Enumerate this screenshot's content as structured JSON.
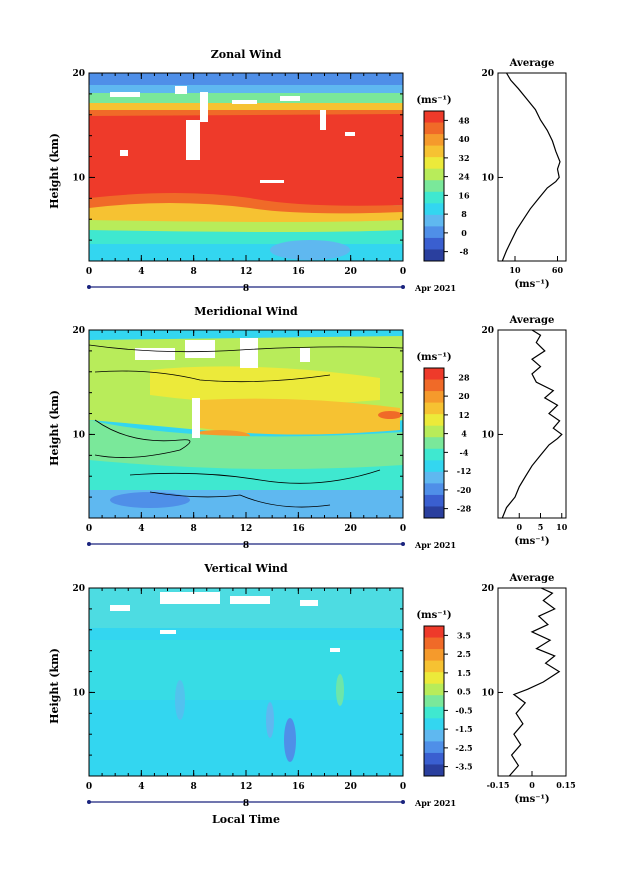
{
  "colors": {
    "scale": [
      "#2a3f9e",
      "#3a5fd0",
      "#4f8fe8",
      "#5fb8f0",
      "#33d6f0",
      "#3fe8d0",
      "#7ae89a",
      "#b8ec5a",
      "#ecea3a",
      "#f6c232",
      "#f59a2c",
      "#f06a28",
      "#ee3a2a"
    ],
    "background": "#ffffff"
  },
  "chart_data": [
    {
      "type": "heatmap",
      "title": "Zonal Wind",
      "xlabel": "",
      "ylabel": "Height (km)",
      "xlim": [
        0,
        24
      ],
      "ylim": [
        2,
        20
      ],
      "x_ticks": [
        "0",
        "4",
        "8",
        "12",
        "16",
        "20",
        "0"
      ],
      "y_ticks": [
        "10",
        "20"
      ],
      "date_label": "Apr 2021",
      "day_label": "8",
      "colorbar": {
        "unit": "(ms⁻¹)",
        "ticks": [
          "48",
          "40",
          "32",
          "24",
          "16",
          "8",
          "0",
          "-8"
        ],
        "range": [
          -12,
          52
        ]
      },
      "profile": {
        "title": "Average",
        "xlim": [
          -10,
          70
        ],
        "x_ticks": [
          "10",
          "60"
        ],
        "xlabel": "(ms⁻¹)",
        "y_ticks": [
          "10",
          "20"
        ],
        "points": [
          [
            -5,
            2
          ],
          [
            0,
            3
          ],
          [
            6,
            4
          ],
          [
            12,
            5
          ],
          [
            20,
            6
          ],
          [
            28,
            7
          ],
          [
            38,
            8
          ],
          [
            48,
            9
          ],
          [
            58,
            9.6
          ],
          [
            62,
            10
          ],
          [
            60,
            10.8
          ],
          [
            63,
            11.5
          ],
          [
            58,
            12.5
          ],
          [
            54,
            13.5
          ],
          [
            48,
            14.5
          ],
          [
            40,
            15.5
          ],
          [
            34,
            16.5
          ],
          [
            24,
            17.5
          ],
          [
            14,
            18.5
          ],
          [
            5,
            19.3
          ],
          [
            0,
            20
          ]
        ]
      }
    },
    {
      "type": "heatmap",
      "title": "Meridional Wind",
      "xlabel": "",
      "ylabel": "Height (km)",
      "xlim": [
        0,
        24
      ],
      "ylim": [
        2,
        20
      ],
      "x_ticks": [
        "0",
        "4",
        "8",
        "12",
        "16",
        "20",
        "0"
      ],
      "y_ticks": [
        "10",
        "20"
      ],
      "date_label": "Apr 2021",
      "day_label": "8",
      "colorbar": {
        "unit": "(ms⁻¹)",
        "ticks": [
          "28",
          "20",
          "12",
          "4",
          "-4",
          "-12",
          "-20",
          "-28"
        ],
        "range": [
          -32,
          32
        ]
      },
      "profile": {
        "title": "Average",
        "xlim": [
          -5,
          11
        ],
        "x_ticks": [
          "0",
          "5",
          "10"
        ],
        "xlabel": "(ms⁻¹)",
        "y_ticks": [
          "10",
          "20"
        ],
        "points": [
          [
            -4,
            2
          ],
          [
            -3,
            3
          ],
          [
            -1,
            4
          ],
          [
            0,
            5
          ],
          [
            1.5,
            6
          ],
          [
            3,
            7
          ],
          [
            5,
            8
          ],
          [
            7,
            9
          ],
          [
            9,
            9.6
          ],
          [
            10,
            10
          ],
          [
            8,
            10.6
          ],
          [
            9.5,
            11.3
          ],
          [
            7,
            12
          ],
          [
            9,
            12.8
          ],
          [
            6,
            13.5
          ],
          [
            8,
            14.2
          ],
          [
            4,
            15
          ],
          [
            3,
            15.8
          ],
          [
            5,
            16.5
          ],
          [
            3,
            17.2
          ],
          [
            6,
            18
          ],
          [
            4,
            18.8
          ],
          [
            5,
            19.5
          ],
          [
            3,
            20
          ]
        ]
      }
    },
    {
      "type": "heatmap",
      "title": "Vertical Wind",
      "xlabel": "Local Time",
      "ylabel": "Height (km)",
      "xlim": [
        0,
        24
      ],
      "ylim": [
        2,
        20
      ],
      "x_ticks": [
        "0",
        "4",
        "8",
        "12",
        "16",
        "20",
        "0"
      ],
      "y_ticks": [
        "10",
        "20"
      ],
      "date_label": "Apr 2021",
      "day_label": "8",
      "colorbar": {
        "unit": "(ms⁻¹)",
        "ticks": [
          "3.5",
          "2.5",
          "1.5",
          "0.5",
          "-0.5",
          "-1.5",
          "-2.5",
          "-3.5"
        ],
        "range": [
          -4,
          4
        ]
      },
      "profile": {
        "title": "Average",
        "xlim": [
          -0.15,
          0.15
        ],
        "x_ticks": [
          "-0.15",
          "0",
          "0.15"
        ],
        "xlabel": "(ms⁻¹)",
        "y_ticks": [
          "10",
          "20"
        ],
        "points": [
          [
            -0.1,
            2
          ],
          [
            -0.06,
            3
          ],
          [
            -0.09,
            4
          ],
          [
            -0.05,
            5
          ],
          [
            -0.08,
            6
          ],
          [
            -0.04,
            7
          ],
          [
            -0.07,
            8
          ],
          [
            -0.03,
            9
          ],
          [
            -0.08,
            9.8
          ],
          [
            -0.02,
            10.3
          ],
          [
            0.05,
            11
          ],
          [
            0.12,
            12
          ],
          [
            0.06,
            12.8
          ],
          [
            0.1,
            13.5
          ],
          [
            0.02,
            14.2
          ],
          [
            0.08,
            15
          ],
          [
            0.0,
            15.8
          ],
          [
            0.07,
            16.5
          ],
          [
            0.03,
            17.3
          ],
          [
            0.1,
            18
          ],
          [
            0.05,
            18.8
          ],
          [
            0.09,
            19.5
          ],
          [
            0.04,
            20
          ]
        ]
      }
    }
  ]
}
